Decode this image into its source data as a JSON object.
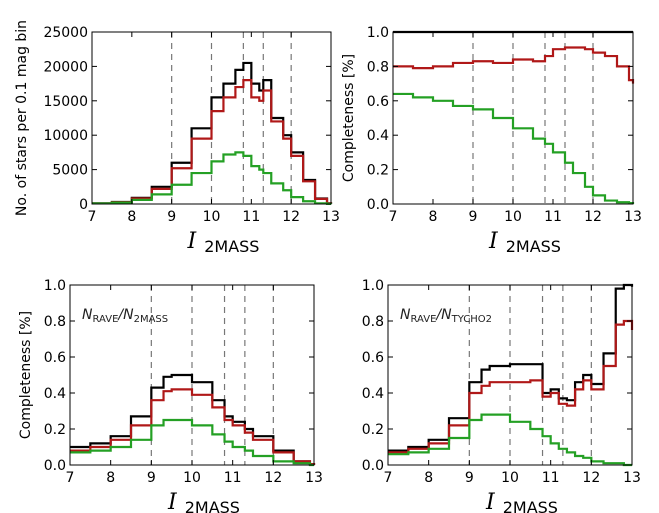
{
  "colors": {
    "total": "#000000",
    "red": "#b01818",
    "green": "#24a024",
    "dashes": "#777777"
  },
  "dashed_lines_x": [
    9.0,
    10.0,
    10.8,
    11.3,
    12.0
  ],
  "chart_data": [
    {
      "id": "top-left",
      "type": "line",
      "step": true,
      "xlabel_main": "I",
      "xlabel_sub": "2MASS",
      "ylabel": "No. of stars per 0.1 mag bin",
      "annotation_main": "",
      "annotation_sub1": "",
      "annotation_mid": "",
      "annotation_sub2": "",
      "xlim": [
        7,
        13
      ],
      "ylim": [
        0,
        25000
      ],
      "xticks": [
        "7",
        "8",
        "9",
        "10",
        "11",
        "12",
        "13"
      ],
      "yticks": [
        "0",
        "5000",
        "10000",
        "15000",
        "20000",
        "25000"
      ],
      "x": [
        7.0,
        7.5,
        8.0,
        8.5,
        9.0,
        9.5,
        10.0,
        10.3,
        10.6,
        10.8,
        11.0,
        11.2,
        11.3,
        11.5,
        11.8,
        12.0,
        12.3,
        12.6,
        12.9,
        13.0
      ],
      "series": [
        {
          "color": "black",
          "values": [
            100,
            300,
            900,
            2500,
            6000,
            11000,
            15500,
            17500,
            19500,
            20500,
            17500,
            16500,
            18000,
            12500,
            10000,
            7500,
            3500,
            800,
            100,
            50
          ]
        },
        {
          "color": "red",
          "values": [
            80,
            250,
            800,
            2200,
            5200,
            9500,
            13500,
            15500,
            17000,
            18000,
            15500,
            15000,
            16500,
            12000,
            9500,
            7000,
            3300,
            750,
            100,
            50
          ]
        },
        {
          "color": "green",
          "values": [
            80,
            200,
            600,
            1400,
            2800,
            4500,
            6200,
            7200,
            7500,
            7000,
            5500,
            5000,
            4500,
            3000,
            2000,
            1000,
            400,
            100,
            20,
            10
          ]
        }
      ]
    },
    {
      "id": "top-right",
      "type": "line",
      "step": true,
      "xlabel_main": "I",
      "xlabel_sub": "2MASS",
      "ylabel": "Completeness [%]",
      "annotation_main": "",
      "annotation_sub1": "",
      "annotation_mid": "",
      "annotation_sub2": "",
      "xlim": [
        7,
        13
      ],
      "ylim": [
        0,
        1
      ],
      "xticks": [
        "7",
        "8",
        "9",
        "10",
        "11",
        "12",
        "13"
      ],
      "yticks": [
        "0.0",
        "0.2",
        "0.4",
        "0.6",
        "0.8",
        "1.0"
      ],
      "x": [
        7.0,
        7.5,
        8.0,
        8.5,
        9.0,
        9.5,
        10.0,
        10.5,
        10.8,
        11.0,
        11.3,
        11.5,
        11.8,
        12.0,
        12.3,
        12.6,
        12.9,
        13.0
      ],
      "series": [
        {
          "color": "black",
          "values": [
            1.0,
            1.0,
            1.0,
            1.0,
            1.0,
            1.0,
            1.0,
            1.0,
            1.0,
            1.0,
            1.0,
            1.0,
            1.0,
            1.0,
            1.0,
            1.0,
            1.0,
            1.0
          ]
        },
        {
          "color": "red",
          "values": [
            0.8,
            0.79,
            0.8,
            0.82,
            0.83,
            0.82,
            0.84,
            0.83,
            0.86,
            0.9,
            0.91,
            0.91,
            0.9,
            0.88,
            0.86,
            0.8,
            0.72,
            0.7
          ]
        },
        {
          "color": "green",
          "values": [
            0.64,
            0.62,
            0.6,
            0.57,
            0.55,
            0.5,
            0.44,
            0.38,
            0.35,
            0.3,
            0.24,
            0.18,
            0.1,
            0.05,
            0.02,
            0.01,
            0.005,
            0.0
          ]
        }
      ]
    },
    {
      "id": "bottom-left",
      "type": "line",
      "step": true,
      "xlabel_main": "I",
      "xlabel_sub": "2MASS",
      "ylabel": "Completeness [%]",
      "annotation_main": "N",
      "annotation_sub1": "RAVE",
      "annotation_mid": "/N",
      "annotation_sub2": "2MASS",
      "xlim": [
        7,
        13
      ],
      "ylim": [
        0,
        1
      ],
      "xticks": [
        "7",
        "8",
        "9",
        "10",
        "11",
        "12",
        "13"
      ],
      "yticks": [
        "0.0",
        "0.2",
        "0.4",
        "0.6",
        "0.8",
        "1.0"
      ],
      "x": [
        7.0,
        7.5,
        8.0,
        8.5,
        9.0,
        9.3,
        9.5,
        10.0,
        10.5,
        10.8,
        11.0,
        11.3,
        11.5,
        12.0,
        12.5,
        12.9,
        13.0
      ],
      "series": [
        {
          "color": "black",
          "values": [
            0.1,
            0.12,
            0.16,
            0.27,
            0.43,
            0.49,
            0.5,
            0.46,
            0.36,
            0.27,
            0.24,
            0.2,
            0.16,
            0.08,
            0.02,
            0.005,
            0.0
          ]
        },
        {
          "color": "red",
          "values": [
            0.08,
            0.1,
            0.14,
            0.22,
            0.36,
            0.41,
            0.42,
            0.39,
            0.32,
            0.25,
            0.22,
            0.18,
            0.14,
            0.07,
            0.02,
            0.005,
            0.0
          ]
        },
        {
          "color": "green",
          "values": [
            0.07,
            0.08,
            0.1,
            0.14,
            0.22,
            0.25,
            0.25,
            0.22,
            0.17,
            0.13,
            0.1,
            0.08,
            0.05,
            0.02,
            0.01,
            0.0,
            0.0
          ]
        }
      ]
    },
    {
      "id": "bottom-right",
      "type": "line",
      "step": true,
      "xlabel_main": "I",
      "xlabel_sub": "2MASS",
      "ylabel": "",
      "annotation_main": "N",
      "annotation_sub1": "RAVE",
      "annotation_mid": "/N",
      "annotation_sub2": "TYCHO2",
      "xlim": [
        7,
        13
      ],
      "ylim": [
        0,
        1
      ],
      "xticks": [
        "7",
        "8",
        "9",
        "10",
        "11",
        "12",
        "13"
      ],
      "yticks": [
        "0.0",
        "0.2",
        "0.4",
        "0.6",
        "0.8",
        "1.0"
      ],
      "x": [
        7.0,
        7.5,
        8.0,
        8.5,
        9.0,
        9.3,
        9.5,
        10.0,
        10.5,
        10.8,
        11.0,
        11.2,
        11.4,
        11.6,
        11.8,
        12.0,
        12.3,
        12.6,
        12.8,
        13.0
      ],
      "series": [
        {
          "color": "black",
          "values": [
            0.08,
            0.1,
            0.14,
            0.26,
            0.46,
            0.53,
            0.55,
            0.56,
            0.56,
            0.4,
            0.42,
            0.37,
            0.36,
            0.46,
            0.5,
            0.45,
            0.62,
            0.98,
            1.0,
            0.99
          ]
        },
        {
          "color": "red",
          "values": [
            0.07,
            0.09,
            0.12,
            0.22,
            0.4,
            0.44,
            0.46,
            0.46,
            0.47,
            0.38,
            0.4,
            0.34,
            0.33,
            0.42,
            0.47,
            0.42,
            0.55,
            0.78,
            0.8,
            0.75
          ]
        },
        {
          "color": "green",
          "values": [
            0.06,
            0.07,
            0.09,
            0.15,
            0.25,
            0.28,
            0.28,
            0.24,
            0.2,
            0.16,
            0.12,
            0.09,
            0.07,
            0.05,
            0.04,
            0.02,
            0.01,
            0.01,
            0.0,
            0.0
          ]
        }
      ]
    }
  ]
}
